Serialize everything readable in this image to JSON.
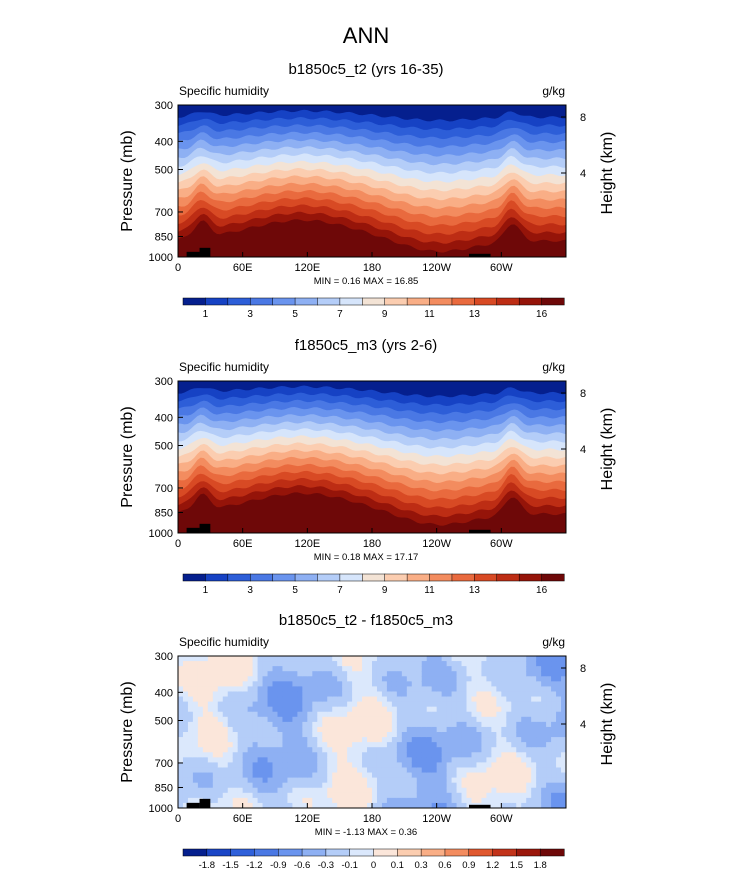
{
  "figure_title": "ANN",
  "chart_data": [
    {
      "type": "heatmap",
      "title": "b1850c5_t2 (yrs 16-35)",
      "left_label": "Specific humidity",
      "right_label": "g/kg",
      "ylabel": "Pressure (mb)",
      "ylabel_right": "Height (km)",
      "x_ticks": [
        "0",
        "60E",
        "120E",
        "180",
        "120W",
        "60W"
      ],
      "x_tick_values": [
        0,
        60,
        120,
        180,
        240,
        300
      ],
      "xlim": [
        0,
        360
      ],
      "y_ticks": [
        "300",
        "400",
        "500",
        "700",
        "850",
        "1000"
      ],
      "y_tick_values": [
        300,
        400,
        500,
        700,
        850,
        1000
      ],
      "ylim": [
        1000,
        300
      ],
      "y_right_ticks": [
        "8",
        "4"
      ],
      "stats": "MIN =   0.16  MAX =  16.85",
      "min": 0.16,
      "max": 16.85,
      "colorbar": {
        "levels": [
          0.5,
          1,
          2,
          3,
          4,
          5,
          6,
          7,
          8,
          9,
          10,
          11,
          12,
          13,
          14,
          16
        ],
        "labels": [
          "1",
          "3",
          "5",
          "7",
          "9",
          "11",
          "13",
          "16"
        ],
        "colors": [
          "#051f8e",
          "#1642c4",
          "#2d5ed8",
          "#4a78e4",
          "#6a94ee",
          "#8eb0f3",
          "#b4cdf8",
          "#d6e5fb",
          "#f3e3d5",
          "#fbcdb0",
          "#f9ae86",
          "#f38c5f",
          "#e96a3e",
          "#d84a24",
          "#bd2d14",
          "#951409",
          "#6e0808"
        ]
      }
    },
    {
      "type": "heatmap",
      "title": "f1850c5_m3 (yrs 2-6)",
      "left_label": "Specific humidity",
      "right_label": "g/kg",
      "ylabel": "Pressure (mb)",
      "ylabel_right": "Height (km)",
      "x_ticks": [
        "0",
        "60E",
        "120E",
        "180",
        "120W",
        "60W"
      ],
      "x_tick_values": [
        0,
        60,
        120,
        180,
        240,
        300
      ],
      "xlim": [
        0,
        360
      ],
      "y_ticks": [
        "300",
        "400",
        "500",
        "700",
        "850",
        "1000"
      ],
      "y_tick_values": [
        300,
        400,
        500,
        700,
        850,
        1000
      ],
      "ylim": [
        1000,
        300
      ],
      "y_right_ticks": [
        "8",
        "4"
      ],
      "stats": "MIN =   0.18  MAX =  17.17",
      "min": 0.18,
      "max": 17.17,
      "colorbar": {
        "levels": [
          0.5,
          1,
          2,
          3,
          4,
          5,
          6,
          7,
          8,
          9,
          10,
          11,
          12,
          13,
          14,
          16
        ],
        "labels": [
          "1",
          "3",
          "5",
          "7",
          "9",
          "11",
          "13",
          "16"
        ],
        "colors": [
          "#051f8e",
          "#1642c4",
          "#2d5ed8",
          "#4a78e4",
          "#6a94ee",
          "#8eb0f3",
          "#b4cdf8",
          "#d6e5fb",
          "#f3e3d5",
          "#fbcdb0",
          "#f9ae86",
          "#f38c5f",
          "#e96a3e",
          "#d84a24",
          "#bd2d14",
          "#951409",
          "#6e0808"
        ]
      }
    },
    {
      "type": "heatmap",
      "title": "b1850c5_t2 - f1850c5_m3",
      "left_label": "Specific humidity",
      "right_label": "g/kg",
      "ylabel": "Pressure (mb)",
      "ylabel_right": "Height (km)",
      "x_ticks": [
        "0",
        "60E",
        "120E",
        "180",
        "120W",
        "60W"
      ],
      "x_tick_values": [
        0,
        60,
        120,
        180,
        240,
        300
      ],
      "xlim": [
        0,
        360
      ],
      "y_ticks": [
        "300",
        "400",
        "500",
        "700",
        "850",
        "1000"
      ],
      "y_tick_values": [
        300,
        400,
        500,
        700,
        850,
        1000
      ],
      "ylim": [
        1000,
        300
      ],
      "y_right_ticks": [
        "8",
        "4"
      ],
      "stats": "MIN =  -1.13  MAX =   0.36",
      "min": -1.13,
      "max": 0.36,
      "colorbar": {
        "levels": [
          -1.8,
          -1.5,
          -1.2,
          -0.9,
          -0.6,
          -0.3,
          -0.1,
          0,
          0.1,
          0.3,
          0.6,
          0.9,
          1.2,
          1.5,
          1.8
        ],
        "labels": [
          "-1.8",
          "-1.5",
          "-1.2",
          "-0.9",
          "-0.6",
          "-0.3",
          "-0.1",
          "0",
          "0.1",
          "0.3",
          "0.6",
          "0.9",
          "1.2",
          "1.5",
          "1.8"
        ],
        "colors": [
          "#051f8e",
          "#1a45c6",
          "#2f60da",
          "#4a78e4",
          "#6a94ee",
          "#8eb0f3",
          "#b4cdf8",
          "#dbe8fc",
          "#fbe6da",
          "#fbcdb0",
          "#f9ae86",
          "#f38c5f",
          "#e0582f",
          "#c2331a",
          "#9b170b",
          "#6e0808"
        ]
      }
    }
  ]
}
